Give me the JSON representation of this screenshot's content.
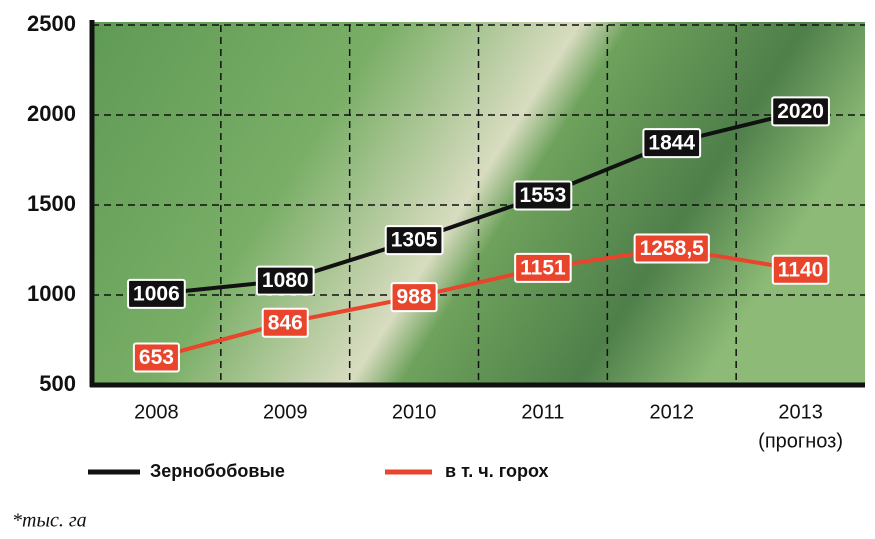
{
  "chart_data": {
    "type": "line",
    "categories": [
      "2008",
      "2009",
      "2010",
      "2011",
      "2012",
      "2013"
    ],
    "forecast_note": "(прогноз)",
    "series": [
      {
        "name": "Зернобобовые",
        "color": "#111111",
        "values": [
          1006,
          1080,
          1305,
          1553,
          1844,
          2020
        ]
      },
      {
        "name": "в т. ч. горох",
        "color": "#e8452c",
        "values": [
          653,
          846,
          988,
          1151,
          1258.5,
          1140
        ],
        "value_labels": [
          "653",
          "846",
          "988",
          "1151",
          "1258,5",
          "1140"
        ]
      }
    ],
    "ylim": [
      500,
      2500
    ],
    "yticks": [
      500,
      1000,
      1500,
      2000,
      2500
    ],
    "grid": true,
    "note": "*тыс. га"
  }
}
